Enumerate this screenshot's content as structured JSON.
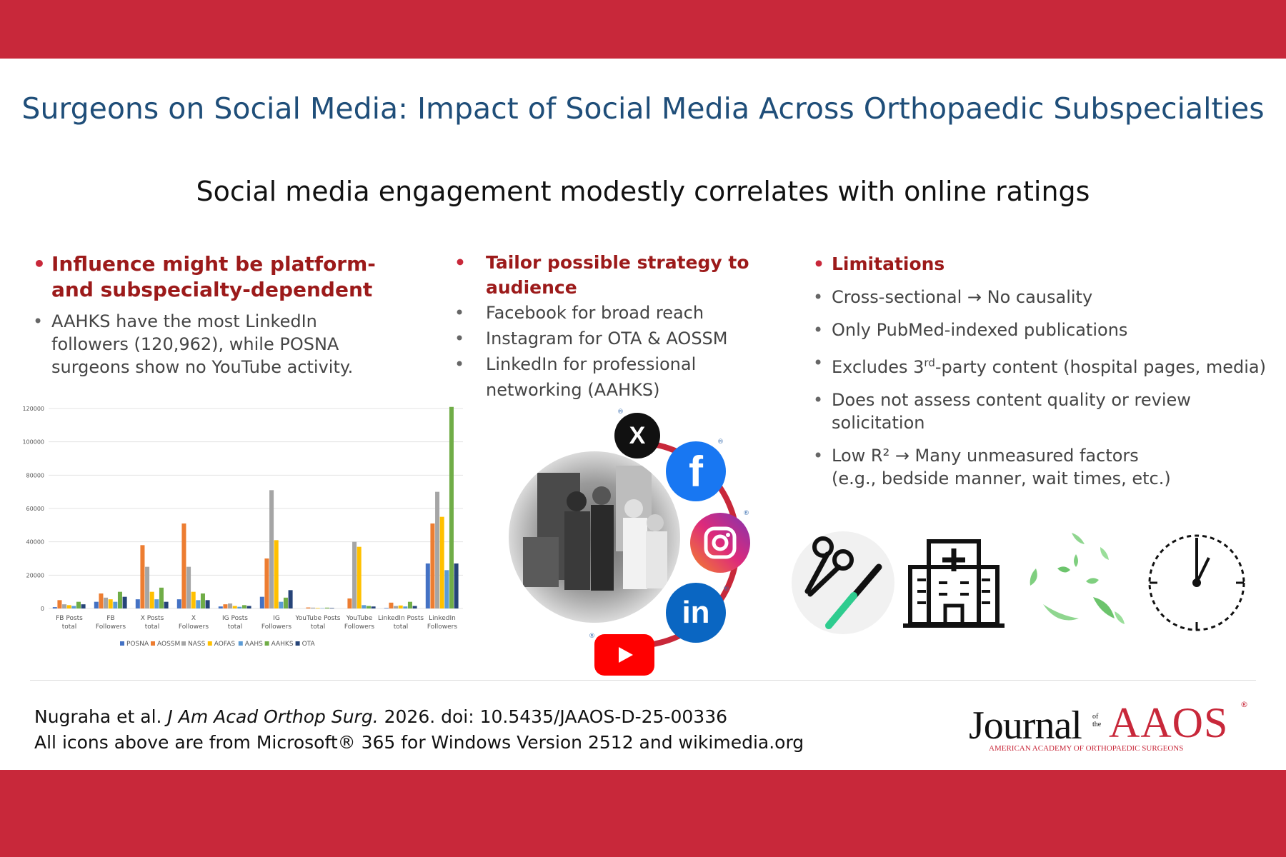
{
  "title": "Surgeons on Social Media: Impact of Social Media Across Orthopaedic Subspecialties",
  "subtitle": "Social media engagement modestly correlates with online ratings",
  "col1": {
    "heading_line1": "Influence might be platform-",
    "heading_line2": "and subspecialty-dependent",
    "bullet_line1": "AAHKS have the most LinkedIn",
    "bullet_line2": "followers (120,962), while POSNA",
    "bullet_line3": "surgeons show no YouTube activity."
  },
  "col2": {
    "heading_line1": "Tailor possible strategy to",
    "heading_line2": "audience",
    "items": [
      "Facebook for broad reach",
      "Instagram for OTA & AOSSM",
      "LinkedIn for professional",
      "networking (AAHKS)"
    ]
  },
  "col3": {
    "heading": "Limitations",
    "item1": "Cross-sectional → No causality",
    "item2": "Only PubMed-indexed publications",
    "item3_pre": "Excludes 3",
    "item3_sup": "rd",
    "item3_post": "-party content (hospital pages, media)",
    "item4_line1": "Does not assess content quality or review",
    "item4_line2": "solicitation",
    "item5_line1": "Low R² → Many unmeasured factors",
    "item5_line2": "(e.g., bedside manner, wait times, etc.)"
  },
  "social_icons": {
    "x": "X",
    "facebook": "f",
    "linkedin": "in",
    "reg": "®"
  },
  "icons": [
    "surgical-tools-icon",
    "hospital-icon",
    "money-icon",
    "clock-icon"
  ],
  "citation": {
    "authors": "Nugraha et al.",
    "journal": "J Am Acad Orthop Surg.",
    "rest": "2026. doi: 10.5435/JAAOS-D-25-00336",
    "line2": "All icons above are from Microsoft® 365 for Windows Version 2512 and wikimedia.org"
  },
  "logo": {
    "word": "Journal",
    "of_the_1": "of",
    "of_the_2": "the",
    "brand": "AAOS",
    "reg": "®",
    "tagline": "AMERICAN ACADEMY OF ORTHOPAEDIC SURGEONS"
  },
  "colors": {
    "band": "#c8283a",
    "title": "#1f4e79",
    "heading": "#9c1a1a"
  },
  "chart_data": {
    "type": "bar",
    "categories": [
      "FB Posts total",
      "FB Followers",
      "X Posts total",
      "X Followers",
      "IG Posts total",
      "IG Followers",
      "YouTube Posts total",
      "YouTube Followers",
      "LinkedIn Posts total",
      "LinkedIn Followers"
    ],
    "ylim": [
      0,
      120000
    ],
    "yticks": [
      "0",
      "20000",
      "40000",
      "60000",
      "80000",
      "100000",
      "120000"
    ],
    "grid": true,
    "legend_position": "bottom",
    "series": [
      {
        "name": "POSNA",
        "color": "#4472c4",
        "values": [
          800,
          4000,
          5500,
          5500,
          1200,
          7000,
          0,
          0,
          300,
          27000
        ]
      },
      {
        "name": "AOSSM",
        "color": "#ed7d31",
        "values": [
          5000,
          9000,
          38000,
          51000,
          2500,
          30000,
          600,
          6000,
          3500,
          51000
        ]
      },
      {
        "name": "NASS",
        "color": "#a5a5a5",
        "values": [
          2500,
          6500,
          25000,
          25000,
          3000,
          71000,
          500,
          40000,
          1500,
          70000
        ]
      },
      {
        "name": "AOFAS",
        "color": "#ffc000",
        "values": [
          2000,
          5500,
          10000,
          10000,
          1500,
          41000,
          300,
          37000,
          1800,
          55000
        ]
      },
      {
        "name": "AAHS",
        "color": "#5b9bd5",
        "values": [
          1500,
          4000,
          5500,
          5000,
          1000,
          4000,
          200,
          2000,
          1200,
          23000
        ]
      },
      {
        "name": "AAHKS",
        "color": "#70ad47",
        "values": [
          4000,
          10000,
          12500,
          9000,
          2000,
          6500,
          500,
          1500,
          4000,
          120962
        ]
      },
      {
        "name": "OTA",
        "color": "#264478",
        "values": [
          2500,
          7000,
          4000,
          5000,
          1500,
          11000,
          300,
          1200,
          1500,
          27000
        ]
      }
    ]
  }
}
